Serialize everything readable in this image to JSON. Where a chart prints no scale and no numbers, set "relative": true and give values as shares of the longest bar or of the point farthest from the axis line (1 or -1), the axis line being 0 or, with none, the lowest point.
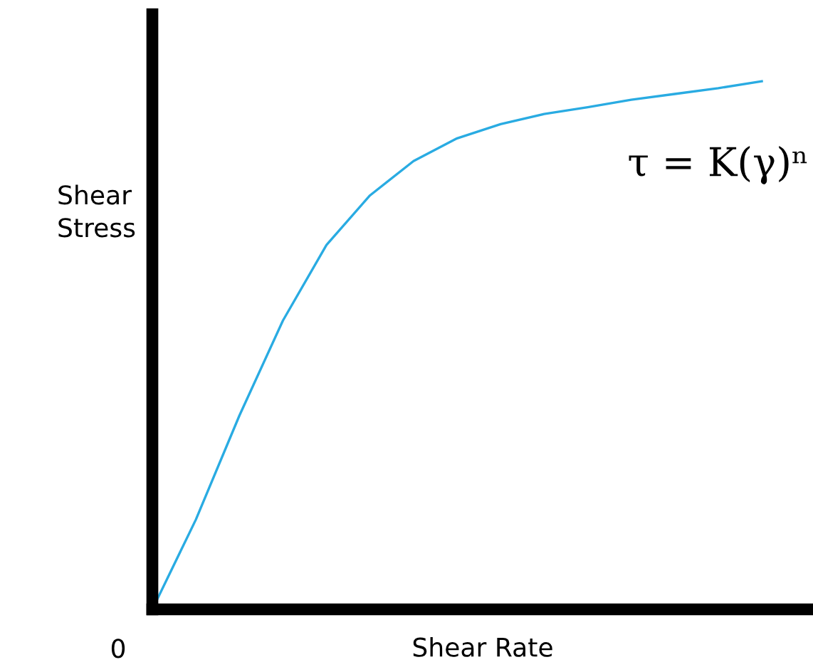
{
  "chart_data": {
    "type": "line",
    "relative": true,
    "xlabel": "Shear Rate",
    "ylabel": "Shear\nStress",
    "annotations": [
      "0",
      "τ = K(γ)ⁿ"
    ],
    "categories": [
      null,
      null,
      null,
      null,
      null,
      null,
      null,
      null,
      null,
      null,
      null,
      null,
      null,
      null,
      null
    ],
    "series": [
      {
        "color": "#29abe2",
        "values": [
          0,
          0.17,
          0.367,
          0.547,
          0.69,
          0.784,
          0.849,
          0.892,
          0.919,
          0.938,
          0.951,
          0.965,
          0.976,
          0.987,
          1
        ]
      }
    ],
    "grid": false,
    "tick_labels": false,
    "marker": "none",
    "line_style": "solid"
  }
}
